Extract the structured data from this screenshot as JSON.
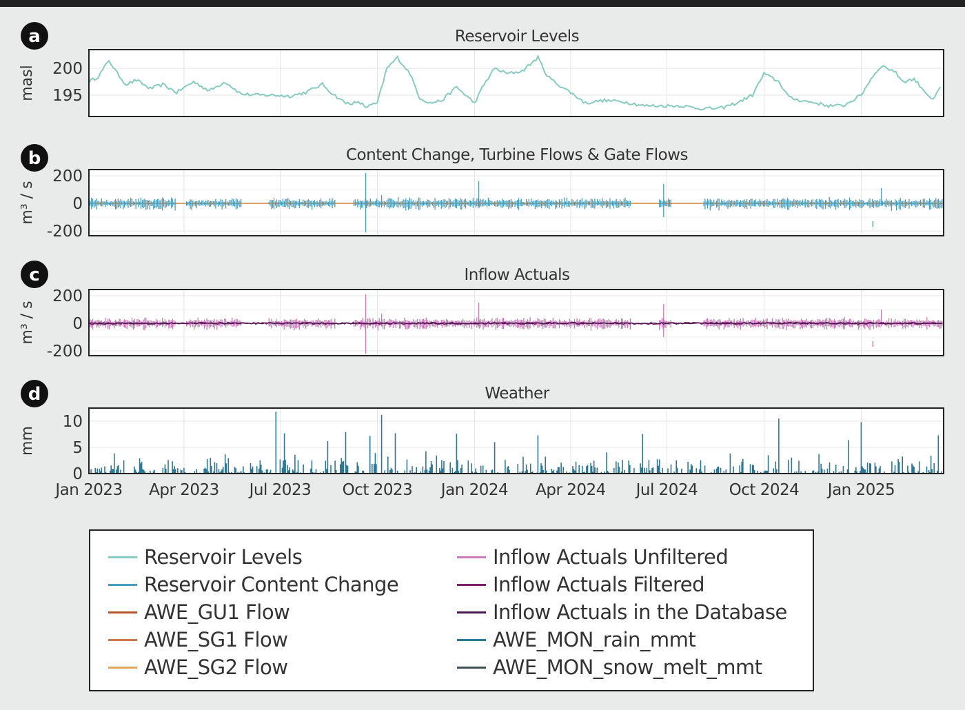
{
  "chart_data": [
    {
      "panel": "a",
      "type": "line",
      "title": "Reservoir Levels",
      "ylabel": "masl",
      "yticks": [
        195,
        200
      ],
      "ylim": [
        191,
        203.5
      ],
      "grid": true,
      "series": [
        {
          "name": "Reservoir Levels",
          "color": "#86cbbf",
          "x": [
            "2023-01-01",
            "2023-01-10",
            "2023-01-20",
            "2023-01-28",
            "2023-02-05",
            "2023-02-15",
            "2023-02-28",
            "2023-03-12",
            "2023-03-25",
            "2023-04-10",
            "2023-04-25",
            "2023-05-10",
            "2023-05-25",
            "2023-06-10",
            "2023-06-25",
            "2023-07-10",
            "2023-07-25",
            "2023-08-10",
            "2023-08-20",
            "2023-09-01",
            "2023-09-15",
            "2023-09-20",
            "2023-10-01",
            "2023-10-10",
            "2023-10-20",
            "2023-11-01",
            "2023-11-10",
            "2023-11-20",
            "2023-12-01",
            "2023-12-15",
            "2024-01-01",
            "2024-01-10",
            "2024-01-20",
            "2024-02-01",
            "2024-02-15",
            "2024-03-01",
            "2024-03-10",
            "2024-03-20",
            "2024-04-01",
            "2024-04-15",
            "2024-05-01",
            "2024-05-20",
            "2024-06-10",
            "2024-06-30",
            "2024-07-15",
            "2024-08-01",
            "2024-08-20",
            "2024-09-05",
            "2024-09-20",
            "2024-10-01",
            "2024-10-15",
            "2024-10-25",
            "2024-11-05",
            "2024-11-20",
            "2024-12-01",
            "2024-12-15",
            "2025-01-01",
            "2025-01-10",
            "2025-01-20",
            "2025-02-01",
            "2025-02-10",
            "2025-02-20",
            "2025-03-01",
            "2025-03-10",
            "2025-03-17"
          ],
          "y": [
            197.5,
            198.5,
            201.5,
            199.0,
            197.0,
            197.8,
            196.2,
            197.0,
            195.5,
            197.5,
            195.8,
            197.5,
            195.2,
            195.0,
            195.0,
            194.8,
            195.5,
            197.0,
            195.2,
            193.5,
            193.5,
            192.8,
            193.5,
            200.0,
            202.0,
            199.0,
            194.5,
            193.5,
            194.0,
            196.5,
            193.5,
            197.0,
            200.0,
            199.0,
            199.5,
            202.0,
            198.5,
            197.0,
            195.5,
            193.5,
            194.0,
            193.8,
            193.0,
            193.0,
            193.0,
            192.5,
            192.5,
            193.5,
            195.0,
            199.0,
            197.5,
            194.5,
            194.0,
            193.5,
            193.0,
            193.0,
            195.0,
            198.0,
            200.5,
            199.5,
            197.5,
            198.0,
            196.0,
            194.0,
            196.5
          ]
        }
      ]
    },
    {
      "panel": "b",
      "type": "line",
      "title": "Content Change, Turbine Flows & Gate Flows",
      "ylabel": "m³ / s",
      "yticks": [
        -200,
        0,
        200
      ],
      "ylim": [
        -235,
        245
      ],
      "grid": true,
      "series": [
        {
          "name": "Reservoir Content Change",
          "color": "#4a9cb8",
          "noise": 30,
          "spikes": [
            [
              "2023-09-20",
              220,
              -210
            ],
            [
              "2024-01-05",
              160,
              -20
            ],
            [
              "2024-06-28",
              140,
              -100
            ],
            [
              "2025-01-12",
              -170,
              -130
            ],
            [
              "2025-01-20",
              110,
              -20
            ],
            [
              "2023-10-05",
              60,
              -30
            ]
          ]
        },
        {
          "name": "AWE_GU1 Flow",
          "color": "#b5532d",
          "value": 0
        },
        {
          "name": "AWE_SG1 Flow",
          "color": "#c77a52",
          "value": 0
        },
        {
          "name": "AWE_SG2 Flow",
          "color": "#e0a65a",
          "value": 0
        }
      ]
    },
    {
      "panel": "c",
      "type": "line",
      "title": "Inflow Actuals",
      "ylabel": "m³ / s",
      "yticks": [
        -200,
        0,
        200
      ],
      "ylim": [
        -235,
        245
      ],
      "grid": true,
      "series": [
        {
          "name": "Inflow Actuals Unfiltered",
          "color": "#c77bb8",
          "noise": 30,
          "spikes": [
            [
              "2023-09-20",
              210,
              -220
            ],
            [
              "2024-01-05",
              150,
              -20
            ],
            [
              "2024-06-28",
              140,
              -100
            ],
            [
              "2025-01-12",
              -170,
              -130
            ],
            [
              "2025-01-20",
              100,
              -20
            ],
            [
              "2023-10-05",
              70,
              -20
            ]
          ]
        },
        {
          "name": "Inflow Actuals Filtered",
          "color": "#7a1f6a",
          "noise": 8
        },
        {
          "name": "Inflow Actuals in the Database",
          "color": "#4a1550",
          "noise": 4
        }
      ]
    },
    {
      "panel": "d",
      "type": "bar",
      "title": "Weather",
      "ylabel": "mm",
      "yticks": [
        0,
        5,
        10
      ],
      "ylim": [
        0,
        12.5
      ],
      "grid": true,
      "xticks": [
        "Jan 2023",
        "Apr 2023",
        "Jul 2023",
        "Oct 2023",
        "Jan 2024",
        "Apr 2024",
        "Jul 2024",
        "Oct 2024",
        "Jan 2025"
      ],
      "xtick_dates": [
        "2023-01-01",
        "2023-04-01",
        "2023-07-01",
        "2023-10-01",
        "2024-01-01",
        "2024-04-01",
        "2024-07-01",
        "2024-10-01",
        "2025-01-01"
      ],
      "xlim": [
        "2023-01-01",
        "2025-03-20"
      ],
      "series": [
        {
          "name": "AWE_MON_rain_mmt",
          "color": "#2e7794",
          "peaks": [
            [
              "2023-06-27",
              11.8
            ],
            [
              "2023-07-05",
              7.7
            ],
            [
              "2023-09-01",
              7.9
            ],
            [
              "2023-09-24",
              7.2
            ],
            [
              "2023-10-05",
              11.2
            ],
            [
              "2023-10-18",
              7.7
            ],
            [
              "2023-12-15",
              7.6
            ],
            [
              "2024-03-01",
              7.3
            ],
            [
              "2024-06-08",
              7.5
            ],
            [
              "2024-10-15",
              10.5
            ],
            [
              "2024-12-20",
              6.4
            ],
            [
              "2025-01-01",
              9.8
            ],
            [
              "2025-03-15",
              7.3
            ],
            [
              "2023-08-15",
              6.2
            ],
            [
              "2024-01-20",
              6.0
            ]
          ]
        },
        {
          "name": "AWE_MON_snow_melt_mmt",
          "color": "#3b4d55"
        }
      ]
    }
  ],
  "panel_letters": [
    "a",
    "b",
    "c",
    "d"
  ],
  "legend": {
    "left": [
      {
        "label": "Reservoir Levels",
        "color": "#86cbbf"
      },
      {
        "label": "Reservoir Content Change",
        "color": "#4a9cb8"
      },
      {
        "label": "AWE_GU1 Flow",
        "color": "#b5532d"
      },
      {
        "label": "AWE_SG1 Flow",
        "color": "#c77a52"
      },
      {
        "label": "AWE_SG2 Flow",
        "color": "#e0a65a"
      }
    ],
    "right": [
      {
        "label": "Inflow Actuals Unfiltered",
        "color": "#c77bb8"
      },
      {
        "label": "Inflow Actuals Filtered",
        "color": "#7a1f6a"
      },
      {
        "label": "Inflow Actuals in the Database",
        "color": "#4a1550"
      },
      {
        "label": "AWE_MON_rain_mmt",
        "color": "#2e7794"
      },
      {
        "label": "AWE_MON_snow_melt_mmt",
        "color": "#3b4d55"
      }
    ]
  }
}
